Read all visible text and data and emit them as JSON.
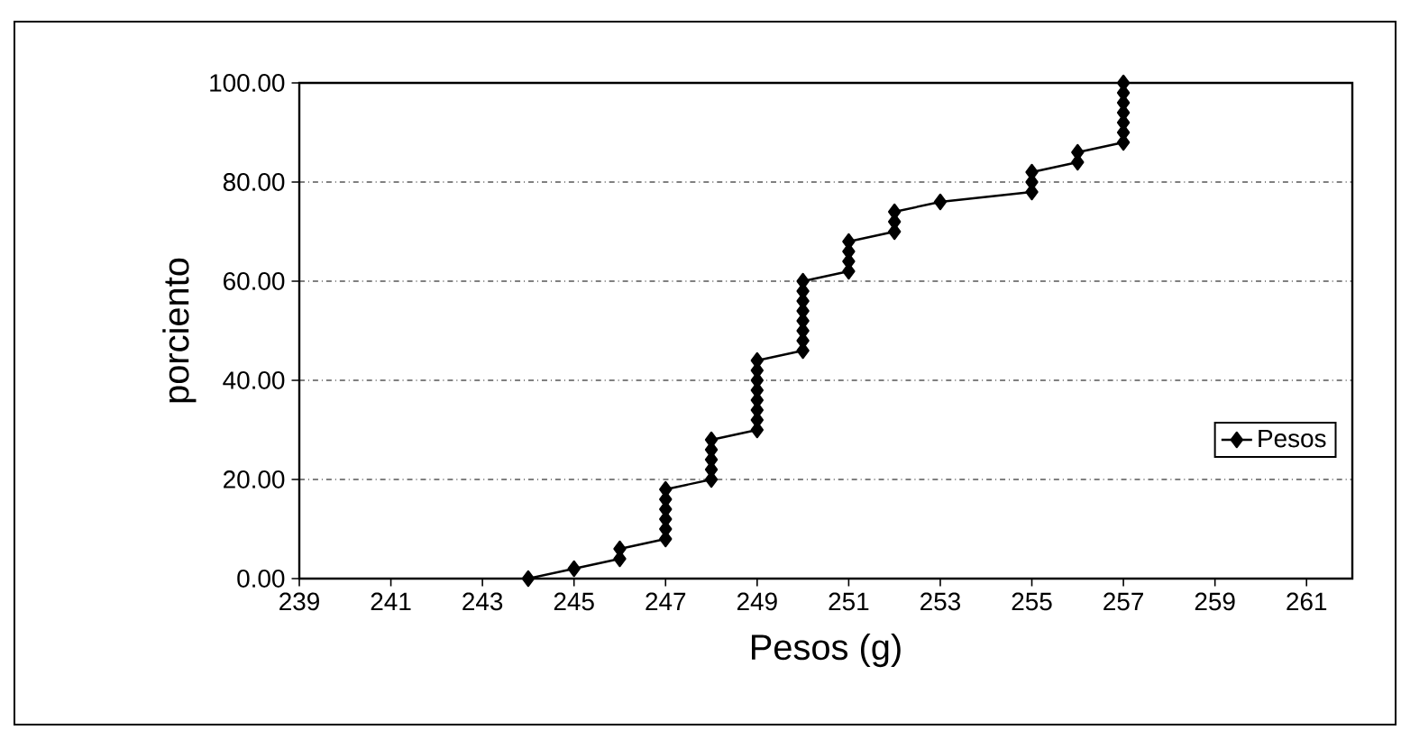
{
  "chart_data": {
    "type": "line",
    "xlabel": "Pesos (g)",
    "ylabel": "porciento",
    "x": [
      244,
      245,
      246,
      246,
      247,
      247,
      247,
      247,
      247,
      247,
      248,
      248,
      248,
      248,
      248,
      249,
      249,
      249,
      249,
      249,
      249,
      249,
      249,
      250,
      250,
      250,
      250,
      250,
      250,
      250,
      250,
      251,
      251,
      251,
      251,
      252,
      252,
      252,
      253,
      255,
      255,
      255,
      256,
      256,
      257,
      257,
      257,
      257,
      257,
      257,
      257
    ],
    "series": [
      {
        "name": "Pesos",
        "color": "#000000",
        "values": [
          0,
          2,
          4,
          6,
          8,
          10,
          12,
          14,
          16,
          18,
          20,
          22,
          24,
          26,
          28,
          30,
          32,
          34,
          36,
          38,
          40,
          42,
          44,
          46,
          48,
          50,
          52,
          54,
          56,
          58,
          60,
          62,
          64,
          66,
          68,
          70,
          72,
          74,
          76,
          78,
          80,
          82,
          84,
          86,
          88,
          90,
          92,
          94,
          96,
          98,
          100
        ]
      }
    ],
    "xlim": [
      239,
      262
    ],
    "xticks": [
      239,
      241,
      243,
      245,
      247,
      249,
      251,
      253,
      255,
      257,
      259,
      261
    ],
    "ylim": [
      0,
      100
    ],
    "yticks": [
      {
        "value": 0,
        "label": "0.00"
      },
      {
        "value": 20,
        "label": "20.00"
      },
      {
        "value": 40,
        "label": "40.00"
      },
      {
        "value": 60,
        "label": "60.00"
      },
      {
        "value": 80,
        "label": "80.00"
      },
      {
        "value": 100,
        "label": "100.00"
      }
    ],
    "grid": "y",
    "legend": "right",
    "marker": "diamond",
    "line_style": "solid"
  }
}
